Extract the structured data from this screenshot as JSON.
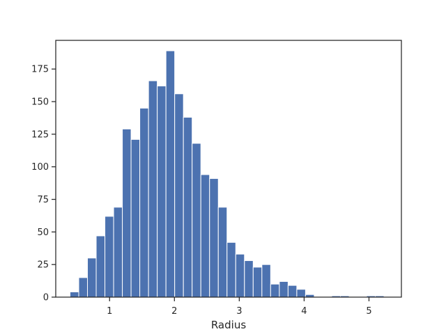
{
  "chart_data": {
    "type": "bar",
    "subtype": "histogram",
    "title": "",
    "xlabel": "Radius",
    "ylabel": "",
    "xlim": [
      0.17,
      5.5
    ],
    "ylim": [
      0,
      197
    ],
    "grid": false,
    "legend": "none",
    "bar_color": "#4c72b0",
    "bin_start": 0.39,
    "bin_width": 0.1345,
    "counts": [
      4,
      15,
      30,
      47,
      62,
      69,
      129,
      121,
      145,
      166,
      162,
      189,
      156,
      138,
      118,
      94,
      91,
      69,
      42,
      33,
      28,
      23,
      25,
      10,
      12,
      9,
      6,
      2,
      0,
      0,
      1,
      1,
      0,
      0,
      1,
      1
    ],
    "x_ticks": [
      {
        "value": 1,
        "label": "1"
      },
      {
        "value": 2,
        "label": "2"
      },
      {
        "value": 3,
        "label": "3"
      },
      {
        "value": 4,
        "label": "4"
      },
      {
        "value": 5,
        "label": "5"
      }
    ],
    "y_ticks": [
      {
        "value": 0,
        "label": "0"
      },
      {
        "value": 25,
        "label": "25"
      },
      {
        "value": 50,
        "label": "50"
      },
      {
        "value": 75,
        "label": "75"
      },
      {
        "value": 100,
        "label": "100"
      },
      {
        "value": 125,
        "label": "125"
      },
      {
        "value": 150,
        "label": "150"
      },
      {
        "value": 175,
        "label": "175"
      }
    ]
  }
}
